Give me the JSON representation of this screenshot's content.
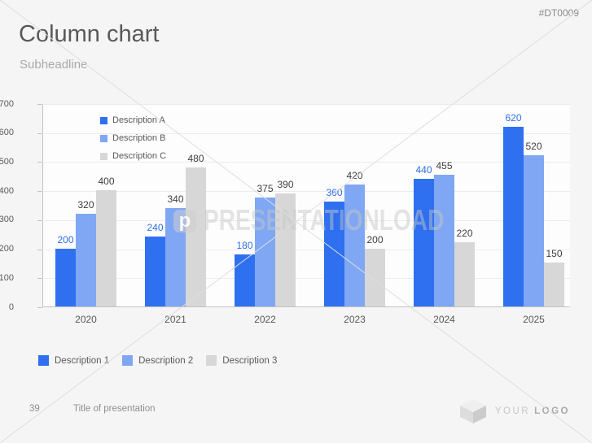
{
  "slide": {
    "code": "#DT0009",
    "title": "Column chart",
    "subheadline": "Subheadline",
    "watermark": {
      "logo_letter": "p",
      "text": "PRESENTATIONLOAD"
    },
    "footer": {
      "page_number": "39",
      "presentation_title": "Title of presentation",
      "logo_word1": "YOUR",
      "logo_word2": "LOGO"
    }
  },
  "colors": {
    "series_a": "#2E70F0",
    "series_b": "#7FA7F3",
    "series_c": "#D7D7D7",
    "value_label_blue": "#2E6DE6",
    "value_label_dark": "#404040",
    "axis_text": "#595959",
    "gridline": "#ececec"
  },
  "chart_data": {
    "type": "bar",
    "title": "",
    "categories": [
      "2020",
      "2021",
      "2022",
      "2023",
      "2024",
      "2025"
    ],
    "series": [
      {
        "name": "Description A",
        "color_key": "series_a",
        "label_color_key": "value_label_blue",
        "values": [
          200,
          240,
          180,
          360,
          440,
          620
        ]
      },
      {
        "name": "Description B",
        "color_key": "series_b",
        "label_color_key": "value_label_dark",
        "values": [
          320,
          340,
          375,
          420,
          455,
          520
        ]
      },
      {
        "name": "Description C",
        "color_key": "series_c",
        "label_color_key": "value_label_dark",
        "values": [
          400,
          480,
          390,
          200,
          220,
          150
        ]
      }
    ],
    "ylim": [
      0,
      700
    ],
    "ytick_step": 100,
    "grid": true,
    "data_labels": true,
    "legend_position": "top-left-inside"
  },
  "bottom_legend": [
    {
      "label": "Description 1",
      "color_key": "series_a"
    },
    {
      "label": "Description 2",
      "color_key": "series_b"
    },
    {
      "label": "Description 3",
      "color_key": "series_c"
    }
  ]
}
